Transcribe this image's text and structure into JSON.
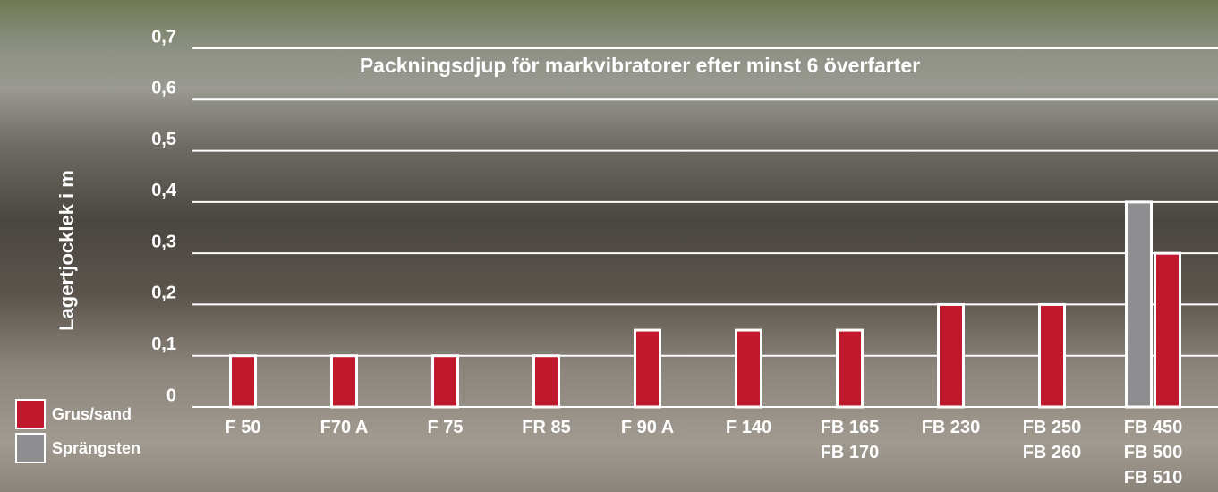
{
  "chart_data": {
    "type": "bar",
    "title": "Packningsdjup för markvibratorer efter minst 6 överfarter",
    "y_label": "Lagertjocklek i m",
    "categories": [
      "F 50",
      "F70 A",
      "F 75",
      "FR 85",
      "F 90 A",
      "F 140",
      "FB 165\nFB 170",
      "FB 230",
      "FB 250\nFB 260",
      "FB 450\nFB 500\nFB 510"
    ],
    "series": [
      {
        "name": "Sprängsten",
        "color": "#8e8e90",
        "values": [
          null,
          null,
          null,
          null,
          null,
          null,
          null,
          null,
          null,
          0.4
        ]
      },
      {
        "name": "Grus/sand",
        "color": "#c0182c",
        "values": [
          0.1,
          0.1,
          0.1,
          0.1,
          0.15,
          0.15,
          0.15,
          0.2,
          0.2,
          0.3
        ]
      }
    ],
    "ylim": [
      0,
      0.7
    ],
    "yticks": [
      0,
      {
        "value": 0.1,
        "label": "0,1"
      },
      {
        "value": 0.2,
        "label": "0,2"
      },
      {
        "value": 0.3,
        "label": "0,3"
      },
      {
        "value": 0.4,
        "label": "0,4"
      },
      {
        "value": 0.5,
        "label": "0,5"
      },
      {
        "value": 0.6,
        "label": "0,6"
      },
      {
        "value": 0.7,
        "label": "0,7"
      }
    ],
    "grid": true
  }
}
